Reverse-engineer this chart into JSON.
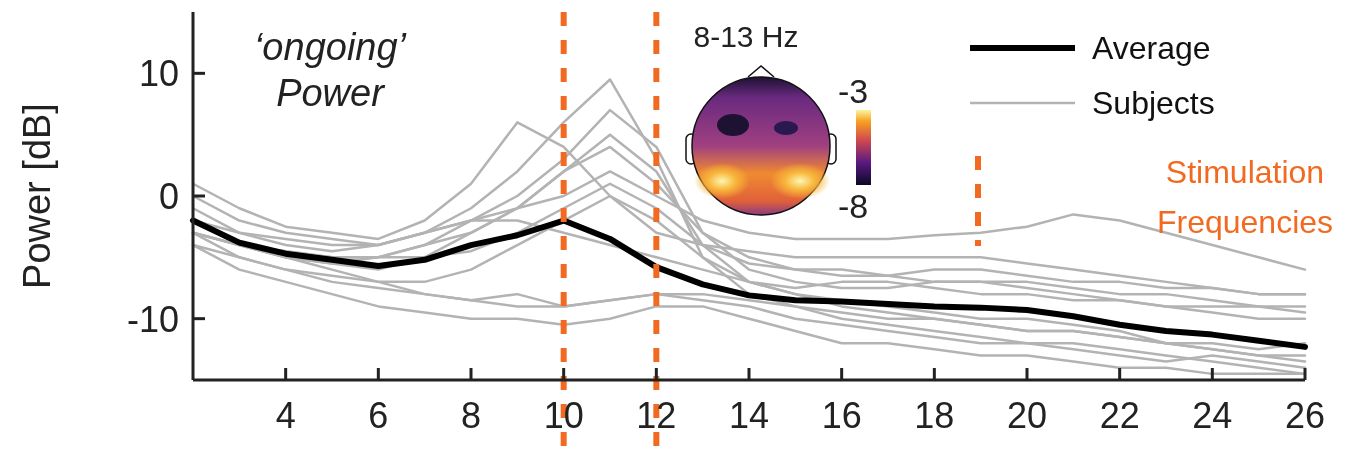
{
  "chart_data": {
    "type": "line",
    "ylabel": "Power [dB]",
    "x": [
      2,
      3,
      4,
      5,
      6,
      7,
      8,
      9,
      10,
      11,
      12,
      13,
      14,
      15,
      16,
      17,
      18,
      19,
      20,
      21,
      22,
      23,
      24,
      25,
      26
    ],
    "xlim": [
      2,
      26
    ],
    "xticks": [
      4,
      6,
      8,
      10,
      12,
      14,
      16,
      18,
      20,
      22,
      24,
      26
    ],
    "ylim": [
      -15,
      15
    ],
    "yticks": [
      -10,
      0,
      10
    ],
    "grid": false,
    "legend": "top right",
    "marker": "none",
    "line_style": "solid",
    "annotations": [
      "‘ongoing’ Power",
      "8-13 Hz",
      "-3",
      "-8"
    ],
    "ref_lines": [
      {
        "axis": "x",
        "value": 10,
        "label": "Stimulation Frequencies",
        "color": "#f26a21",
        "line_style": "dashed"
      },
      {
        "axis": "x",
        "value": 12,
        "color": "#f26a21",
        "line_style": "dashed"
      }
    ],
    "series": [
      {
        "name": "Subjects",
        "color": "#b3b3b3",
        "values": [
          -2,
          -3,
          -3.5,
          -4,
          -4,
          -3,
          -1,
          2,
          6,
          9.5,
          3,
          -5,
          -8,
          -9,
          -10,
          -10.5,
          -11,
          -11.5,
          -12,
          -12,
          -12.5,
          -13,
          -13.5,
          -14,
          -14.5
        ]
      },
      {
        "color": "#b3b3b3",
        "values": [
          1,
          -1,
          -2.5,
          -3,
          -3.5,
          -2,
          1,
          6,
          4,
          0,
          -3,
          -4,
          -4.5,
          -5,
          -5,
          -5,
          -5,
          -5,
          -5.5,
          -6,
          -6.5,
          -7,
          -7.5,
          -8,
          -8
        ]
      },
      {
        "color": "#b3b3b3",
        "values": [
          0,
          -2,
          -3,
          -3.5,
          -4,
          -3,
          -2,
          -1,
          0,
          2,
          0,
          -2,
          -3,
          -3.5,
          -3.5,
          -3.5,
          -3.2,
          -3,
          -2.5,
          -1.5,
          -2,
          -3,
          -4,
          -5,
          -6
        ]
      },
      {
        "color": "#b3b3b3",
        "values": [
          -3,
          -4,
          -4.5,
          -5,
          -5,
          -4,
          -2,
          0,
          3,
          7,
          4,
          -3,
          -6,
          -7,
          -7.5,
          -7.5,
          -7,
          -7,
          -7.5,
          -8,
          -8.5,
          -9,
          -9.5,
          -10,
          -10
        ]
      },
      {
        "color": "#b3b3b3",
        "values": [
          -3,
          -4,
          -5,
          -5.5,
          -6,
          -5,
          -3,
          -1,
          2,
          5,
          2,
          -4,
          -7,
          -8,
          -8.5,
          -9,
          -9.5,
          -10,
          -10,
          -10.5,
          -11,
          -12,
          -12.5,
          -13,
          -13.5
        ]
      },
      {
        "color": "#b3b3b3",
        "values": [
          -4,
          -6,
          -7,
          -8,
          -9,
          -9.5,
          -10,
          -10,
          -10.5,
          -10,
          -9,
          -9,
          -10,
          -11,
          -12,
          -12,
          -12.5,
          -13,
          -13,
          -13.5,
          -14,
          -14,
          -14.5,
          -14.5,
          -14.5
        ]
      },
      {
        "color": "#b3b3b3",
        "values": [
          -3,
          -5,
          -6,
          -7,
          -7.5,
          -8,
          -8.5,
          -8,
          -9,
          -8.5,
          -8,
          -8.5,
          -9,
          -10,
          -10.5,
          -11,
          -11.5,
          -12,
          -12,
          -12.5,
          -13,
          -13.5,
          -13,
          -13.5,
          -14
        ]
      },
      {
        "color": "#b3b3b3",
        "values": [
          -2,
          -4,
          -4.5,
          -5,
          -5,
          -5,
          -4.5,
          -3,
          -1,
          1,
          -1,
          -4,
          -5.5,
          -6,
          -6,
          -6.5,
          -6,
          -6,
          -6.5,
          -7,
          -7,
          -7.5,
          -7.5,
          -8,
          -8
        ]
      },
      {
        "color": "#b3b3b3",
        "values": [
          -4,
          -5,
          -6,
          -6.5,
          -7,
          -7,
          -6,
          -4,
          -2,
          0,
          -2,
          -5,
          -7,
          -7.5,
          -7,
          -7,
          -7.5,
          -8,
          -8,
          -8.5,
          -8.5,
          -9,
          -9,
          -9,
          -9.5
        ]
      },
      {
        "color": "#b3b3b3",
        "values": [
          -1,
          -3,
          -4,
          -4.5,
          -4,
          -3,
          -2,
          -2,
          -3,
          -4,
          -5,
          -6,
          -7,
          -8,
          -9,
          -9.5,
          -10,
          -10.5,
          -11,
          -11,
          -11.5,
          -12,
          -12.5,
          -13,
          -13
        ]
      },
      {
        "color": "#b3b3b3",
        "values": [
          -3,
          -4,
          -5,
          -6,
          -7,
          -8,
          -8.5,
          -9,
          -9,
          -8.5,
          -8,
          -8,
          -8.5,
          -9,
          -9.5,
          -10,
          -10,
          -10.5,
          -11,
          -11,
          -11.5,
          -12,
          -12,
          -12.5,
          -12
        ]
      },
      {
        "color": "#b3b3b3",
        "values": [
          -2,
          -4,
          -5,
          -5.5,
          -5,
          -4,
          -3,
          -1,
          2,
          4,
          1,
          -3,
          -5,
          -6,
          -6.5,
          -6.5,
          -7,
          -7,
          -7,
          -7.5,
          -8,
          -8,
          -8.5,
          -9,
          -9
        ]
      },
      {
        "name": "Average",
        "color": "#000000",
        "values": [
          -2,
          -3.8,
          -4.7,
          -5.2,
          -5.7,
          -5.2,
          -4,
          -3.2,
          -2,
          -3.5,
          -5.8,
          -7.2,
          -8.1,
          -8.5,
          -8.6,
          -8.8,
          -9,
          -9.1,
          -9.3,
          -9.8,
          -10.5,
          -11,
          -11.3,
          -11.8,
          -12.3
        ]
      }
    ]
  }
}
